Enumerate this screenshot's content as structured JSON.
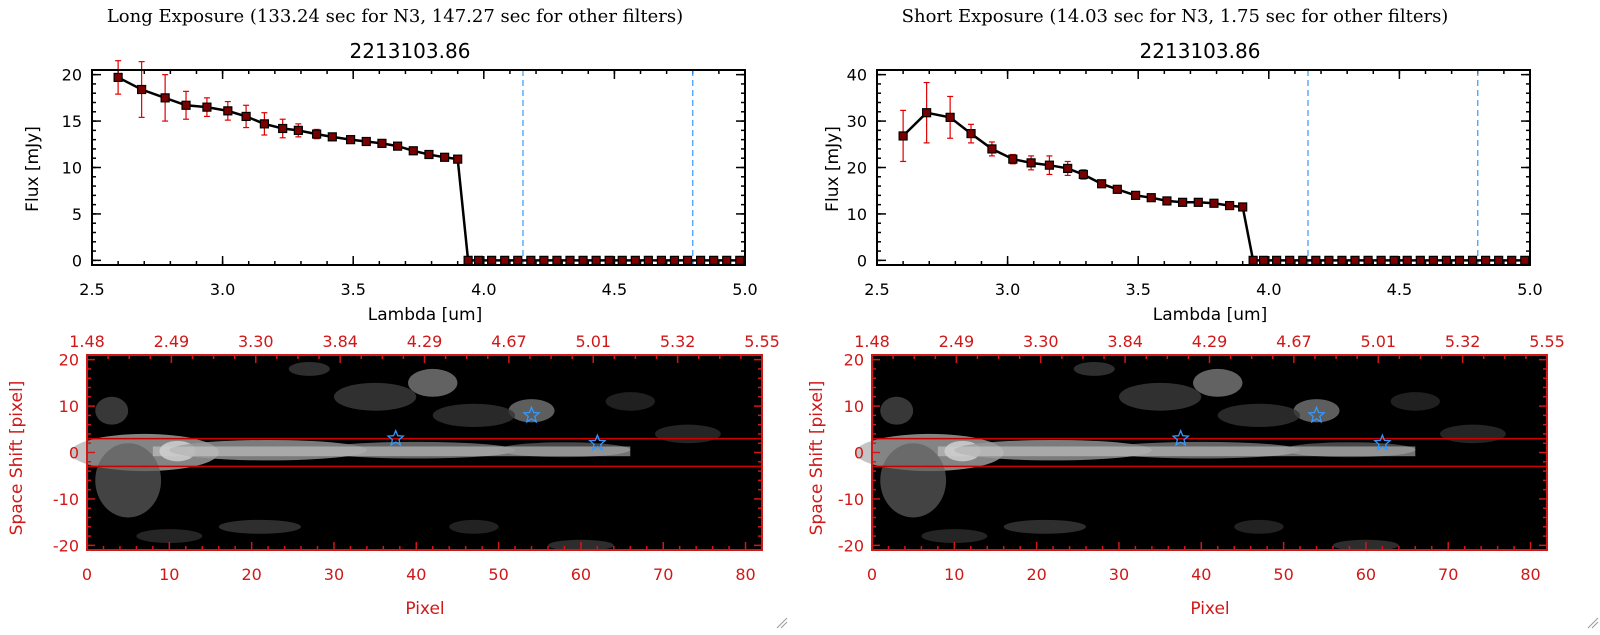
{
  "panels": [
    {
      "heading": "Long Exposure (133.24 sec for N3, 147.27 sec for other filters)",
      "spectrum": {
        "type": "line",
        "title": "2213103.86",
        "xlabel": "Lambda [um]",
        "ylabel": "Flux [mJy]",
        "xlim": [
          2.5,
          5.0
        ],
        "ylim": [
          -0.5,
          20.5
        ],
        "xticks": [
          "2.5",
          "3.0",
          "3.5",
          "4.0",
          "4.5",
          "5.0"
        ],
        "yticks": [
          "0",
          "5",
          "10",
          "15",
          "20"
        ],
        "vlines": [
          4.15,
          4.8
        ],
        "x": [
          2.6,
          2.69,
          2.78,
          2.86,
          2.94,
          3.02,
          3.09,
          3.16,
          3.23,
          3.29,
          3.36,
          3.42,
          3.49,
          3.55,
          3.61,
          3.67,
          3.73,
          3.79,
          3.85,
          3.9,
          3.94,
          3.98,
          4.03,
          4.08,
          4.13,
          4.18,
          4.23,
          4.28,
          4.33,
          4.38,
          4.43,
          4.48,
          4.53,
          4.58,
          4.63,
          4.68,
          4.73,
          4.78,
          4.83,
          4.88,
          4.93,
          4.98
        ],
        "y": [
          19.7,
          18.4,
          17.5,
          16.7,
          16.5,
          16.1,
          15.5,
          14.7,
          14.2,
          14.0,
          13.6,
          13.3,
          13.0,
          12.8,
          12.6,
          12.3,
          11.8,
          11.4,
          11.1,
          10.9,
          0,
          0,
          0,
          0,
          0,
          0,
          0,
          0,
          0,
          0,
          0,
          0,
          0,
          0,
          0,
          0,
          0,
          0,
          0,
          0,
          0,
          0
        ],
        "yerr": [
          1.8,
          3.0,
          2.5,
          1.5,
          1.0,
          1.0,
          1.2,
          1.2,
          1.0,
          0.7,
          0.5,
          0.3,
          0.3,
          0.3,
          0.3,
          0.2,
          0.2,
          0.2,
          0.2,
          0.2,
          0,
          0,
          0,
          0,
          0,
          0,
          0,
          0,
          0,
          0,
          0,
          0,
          0,
          0,
          0,
          0,
          0,
          0,
          0,
          0,
          0,
          0
        ]
      },
      "image": {
        "type": "heatmap",
        "xlabel": "Pixel",
        "ylabel": "Space Shift [pixel]",
        "xlim": [
          0,
          82
        ],
        "ylim": [
          -21,
          21
        ],
        "xticks": [
          "0",
          "10",
          "20",
          "30",
          "40",
          "50",
          "60",
          "70",
          "80"
        ],
        "yticks": [
          "-20",
          "-10",
          "0",
          "10",
          "20"
        ],
        "top_ticks": [
          "1.48",
          "2.49",
          "3.30",
          "3.84",
          "4.29",
          "4.67",
          "5.01",
          "5.32",
          "5.55"
        ],
        "hlines": [
          3,
          -3
        ],
        "stars": [
          [
            37.5,
            3
          ],
          [
            54,
            8
          ],
          [
            62,
            2
          ]
        ]
      }
    },
    {
      "heading": "Short Exposure (14.03 sec for N3, 1.75 sec for other filters)",
      "spectrum": {
        "type": "line",
        "title": "2213103.86",
        "xlabel": "Lambda [um]",
        "ylabel": "Flux [mJy]",
        "xlim": [
          2.5,
          5.0
        ],
        "ylim": [
          -1,
          41
        ],
        "xticks": [
          "2.5",
          "3.0",
          "3.5",
          "4.0",
          "4.5",
          "5.0"
        ],
        "yticks": [
          "0",
          "10",
          "20",
          "30",
          "40"
        ],
        "vlines": [
          4.15,
          4.8
        ],
        "x": [
          2.6,
          2.69,
          2.78,
          2.86,
          2.94,
          3.02,
          3.09,
          3.16,
          3.23,
          3.29,
          3.36,
          3.42,
          3.49,
          3.55,
          3.61,
          3.67,
          3.73,
          3.79,
          3.85,
          3.9,
          3.94,
          3.98,
          4.03,
          4.08,
          4.13,
          4.18,
          4.23,
          4.28,
          4.33,
          4.38,
          4.43,
          4.48,
          4.53,
          4.58,
          4.63,
          4.68,
          4.73,
          4.78,
          4.83,
          4.88,
          4.93,
          4.98
        ],
        "y": [
          26.8,
          31.8,
          30.8,
          27.3,
          24.0,
          21.8,
          21.0,
          20.5,
          19.8,
          18.5,
          16.5,
          15.3,
          14.0,
          13.5,
          12.8,
          12.5,
          12.5,
          12.3,
          11.8,
          11.5,
          0,
          0,
          0,
          0,
          0,
          0,
          0,
          0,
          0,
          0,
          0,
          0,
          0,
          0,
          0,
          0,
          0,
          0,
          0,
          0,
          0,
          0
        ],
        "yerr": [
          5.5,
          6.5,
          4.5,
          2.0,
          1.5,
          1.0,
          1.5,
          2.0,
          1.5,
          1.0,
          0.5,
          0.5,
          0.5,
          0.4,
          0.4,
          0.4,
          0.4,
          0.4,
          0.4,
          0.4,
          0,
          0,
          0,
          0,
          0,
          0,
          0,
          0,
          0,
          0,
          0,
          0,
          0,
          0,
          0,
          0,
          0,
          0,
          0,
          0,
          0,
          0
        ]
      },
      "image": {
        "type": "heatmap",
        "xlabel": "Pixel",
        "ylabel": "Space Shift [pixel]",
        "xlim": [
          0,
          82
        ],
        "ylim": [
          -21,
          21
        ],
        "xticks": [
          "0",
          "10",
          "20",
          "30",
          "40",
          "50",
          "60",
          "70",
          "80"
        ],
        "yticks": [
          "-20",
          "-10",
          "0",
          "10",
          "20"
        ],
        "top_ticks": [
          "1.48",
          "2.49",
          "3.30",
          "3.84",
          "4.29",
          "4.67",
          "5.01",
          "5.32",
          "5.55"
        ],
        "hlines": [
          3,
          -3
        ],
        "stars": [
          [
            37.5,
            3
          ],
          [
            54,
            8
          ],
          [
            62,
            2
          ]
        ]
      }
    }
  ],
  "colors": {
    "axis": "#000000",
    "marker": "#7a0000",
    "errorbar": "#e00000",
    "vline": "#3399ff",
    "image_axis": "#d01818",
    "image_line": "#cc0000",
    "star": "#3399ff"
  }
}
